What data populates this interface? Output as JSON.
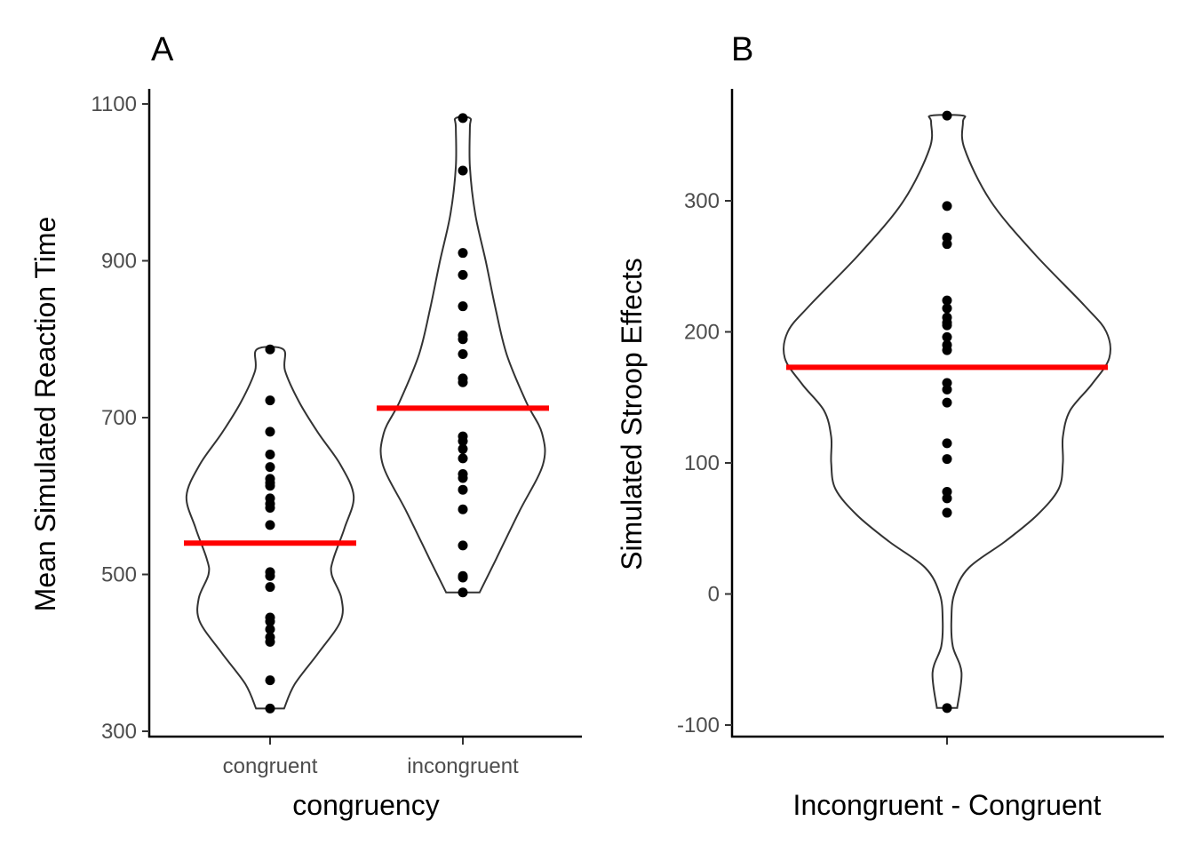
{
  "chart_data": [
    {
      "panel_tag": "A",
      "type": "violin",
      "xlabel": "congruency",
      "ylabel": "Mean Simulated Reaction Time",
      "categories": [
        "congruent",
        "incongruent"
      ],
      "yticks": [
        "300",
        "500",
        "700",
        "900",
        "1100"
      ],
      "ylim": [
        290,
        1120
      ],
      "grid": false,
      "mean_line_color": "#ff0000",
      "series": [
        {
          "category": "congruent",
          "mean": 540,
          "points": [
            787,
            722,
            682,
            653,
            637,
            622,
            617,
            613,
            597,
            590,
            585,
            563,
            503,
            498,
            484,
            445,
            440,
            430,
            420,
            414,
            365,
            329
          ],
          "violin_profile": [
            [
              329,
              0.16
            ],
            [
              360,
              0.28
            ],
            [
              400,
              0.55
            ],
            [
              440,
              0.8
            ],
            [
              470,
              0.81
            ],
            [
              500,
              0.7
            ],
            [
              520,
              0.72
            ],
            [
              560,
              0.85
            ],
            [
              600,
              0.95
            ],
            [
              640,
              0.8
            ],
            [
              680,
              0.55
            ],
            [
              720,
              0.33
            ],
            [
              760,
              0.17
            ],
            [
              787,
              0.15
            ]
          ]
        },
        {
          "category": "incongruent",
          "mean": 712,
          "points": [
            1082,
            1015,
            910,
            882,
            842,
            805,
            800,
            781,
            750,
            745,
            676,
            670,
            660,
            648,
            628,
            623,
            608,
            583,
            537,
            498,
            496,
            477
          ],
          "violin_profile": [
            [
              477,
              0.19
            ],
            [
              520,
              0.38
            ],
            [
              580,
              0.64
            ],
            [
              640,
              0.91
            ],
            [
              680,
              0.9
            ],
            [
              720,
              0.72
            ],
            [
              780,
              0.5
            ],
            [
              840,
              0.37
            ],
            [
              900,
              0.26
            ],
            [
              960,
              0.14
            ],
            [
              1020,
              0.08
            ],
            [
              1070,
              0.08
            ],
            [
              1082,
              0.08
            ]
          ]
        }
      ]
    },
    {
      "panel_tag": "B",
      "type": "violin",
      "xlabel": "Incongruent - Congruent",
      "ylabel": "Simulated Stroop Effects",
      "yticks": [
        "-100",
        "0",
        "100",
        "200",
        "300"
      ],
      "ylim": [
        -110,
        380
      ],
      "grid": false,
      "mean_line_color": "#ff0000",
      "series": [
        {
          "category": "",
          "mean": 173,
          "points": [
            365,
            296,
            272,
            267,
            224,
            218,
            211,
            207,
            205,
            196,
            190,
            186,
            161,
            156,
            146,
            115,
            103,
            78,
            73,
            62,
            -87
          ],
          "violin_profile": [
            [
              -87,
              0.07
            ],
            [
              -60,
              0.1
            ],
            [
              -40,
              0.04
            ],
            [
              -20,
              0.03
            ],
            [
              0,
              0.05
            ],
            [
              20,
              0.15
            ],
            [
              40,
              0.4
            ],
            [
              60,
              0.62
            ],
            [
              80,
              0.77
            ],
            [
              100,
              0.8
            ],
            [
              120,
              0.8
            ],
            [
              140,
              0.85
            ],
            [
              160,
              1.0
            ],
            [
              180,
              1.12
            ],
            [
              200,
              1.1
            ],
            [
              220,
              0.95
            ],
            [
              260,
              0.6
            ],
            [
              300,
              0.3
            ],
            [
              340,
              0.12
            ],
            [
              360,
              0.11
            ],
            [
              365,
              0.11
            ]
          ]
        }
      ]
    }
  ]
}
